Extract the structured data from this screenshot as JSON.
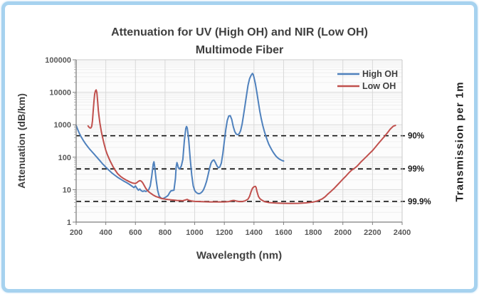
{
  "title": {
    "line1": "Attenuation for UV (High OH) and NIR (Low OH)",
    "line2": "Multimode Fiber"
  },
  "frame": {
    "border_color": "#a6d2ef",
    "background": "#ffffff"
  },
  "legend": {
    "position": "top-right-inside",
    "items": [
      {
        "label": "High OH",
        "color": "#4f81bd"
      },
      {
        "label": "Low OH",
        "color": "#c0504d"
      }
    ]
  },
  "chart_data": {
    "type": "line",
    "title": "Attenuation for UV (High OH) and NIR (Low OH) Multimode Fiber",
    "xlabel": "Wavelength (nm)",
    "ylabel": "Attenuation (dB/km)",
    "y2label": "Transmission per 1m",
    "x_range": [
      200,
      2400
    ],
    "x_ticks": [
      200,
      400,
      600,
      800,
      1000,
      1200,
      1400,
      1600,
      1800,
      2000,
      2200,
      2400
    ],
    "y_scale": "log",
    "y_range": [
      1,
      100000
    ],
    "y_ticks": [
      1,
      10,
      100,
      1000,
      10000,
      100000
    ],
    "y_tick_labels": [
      "1",
      "10",
      "100",
      "1000",
      "10000",
      "100000"
    ],
    "grid": "major-vertical, major-and-minor-horizontal",
    "reference_lines": [
      {
        "label": "90%",
        "attenuation_db_per_km": 457.6,
        "style": "black-dashed"
      },
      {
        "label": "99%",
        "attenuation_db_per_km": 43.6,
        "style": "black-dashed"
      },
      {
        "label": "99.9%",
        "attenuation_db_per_km": 4.34,
        "style": "black-dashed"
      }
    ],
    "series": [
      {
        "name": "High OH",
        "color": "#4f81bd",
        "points": [
          [
            200,
            950
          ],
          [
            210,
            720
          ],
          [
            220,
            560
          ],
          [
            230,
            455
          ],
          [
            240,
            380
          ],
          [
            250,
            320
          ],
          [
            260,
            272
          ],
          [
            270,
            235
          ],
          [
            280,
            205
          ],
          [
            290,
            180
          ],
          [
            300,
            160
          ],
          [
            310,
            142
          ],
          [
            320,
            126
          ],
          [
            330,
            112
          ],
          [
            340,
            100
          ],
          [
            350,
            88
          ],
          [
            360,
            78
          ],
          [
            370,
            69
          ],
          [
            380,
            61
          ],
          [
            390,
            55
          ],
          [
            400,
            49
          ],
          [
            420,
            40
          ],
          [
            440,
            33
          ],
          [
            460,
            28
          ],
          [
            480,
            24
          ],
          [
            500,
            21
          ],
          [
            520,
            18.5
          ],
          [
            540,
            16.5
          ],
          [
            560,
            14.5
          ],
          [
            580,
            12.5
          ],
          [
            590,
            11.5
          ],
          [
            600,
            13
          ],
          [
            610,
            11
          ],
          [
            620,
            9.6
          ],
          [
            630,
            10.4
          ],
          [
            640,
            9.2
          ],
          [
            650,
            8.8
          ],
          [
            660,
            9.2
          ],
          [
            670,
            8.8
          ],
          [
            680,
            9.2
          ],
          [
            690,
            10
          ],
          [
            700,
            13
          ],
          [
            710,
            26
          ],
          [
            720,
            62
          ],
          [
            725,
            72
          ],
          [
            730,
            52
          ],
          [
            740,
            20
          ],
          [
            750,
            9.5
          ],
          [
            760,
            6.4
          ],
          [
            770,
            5.6
          ],
          [
            780,
            5.3
          ],
          [
            790,
            5.4
          ],
          [
            800,
            5.7
          ],
          [
            810,
            6.1
          ],
          [
            820,
            6.6
          ],
          [
            830,
            8
          ],
          [
            840,
            9.2
          ],
          [
            850,
            9.4
          ],
          [
            860,
            9.6
          ],
          [
            870,
            22
          ],
          [
            875,
            50
          ],
          [
            880,
            68
          ],
          [
            885,
            58
          ],
          [
            890,
            47
          ],
          [
            900,
            44
          ],
          [
            910,
            54
          ],
          [
            920,
            85
          ],
          [
            930,
            320
          ],
          [
            940,
            780
          ],
          [
            945,
            880
          ],
          [
            950,
            790
          ],
          [
            955,
            520
          ],
          [
            960,
            330
          ],
          [
            970,
            86
          ],
          [
            980,
            28
          ],
          [
            990,
            13
          ],
          [
            1000,
            9.4
          ],
          [
            1010,
            8.2
          ],
          [
            1020,
            7.7
          ],
          [
            1030,
            7.5
          ],
          [
            1040,
            7.8
          ],
          [
            1050,
            8.6
          ],
          [
            1060,
            10
          ],
          [
            1070,
            13
          ],
          [
            1080,
            18
          ],
          [
            1090,
            28
          ],
          [
            1100,
            45
          ],
          [
            1110,
            65
          ],
          [
            1120,
            78
          ],
          [
            1130,
            82
          ],
          [
            1140,
            68
          ],
          [
            1150,
            54
          ],
          [
            1160,
            47
          ],
          [
            1170,
            50
          ],
          [
            1180,
            66
          ],
          [
            1190,
            130
          ],
          [
            1200,
            310
          ],
          [
            1210,
            720
          ],
          [
            1220,
            1350
          ],
          [
            1230,
            1850
          ],
          [
            1240,
            1900
          ],
          [
            1250,
            1450
          ],
          [
            1260,
            880
          ],
          [
            1270,
            620
          ],
          [
            1280,
            520
          ],
          [
            1290,
            490
          ],
          [
            1300,
            525
          ],
          [
            1310,
            660
          ],
          [
            1320,
            1050
          ],
          [
            1330,
            2000
          ],
          [
            1340,
            4000
          ],
          [
            1350,
            8200
          ],
          [
            1360,
            16500
          ],
          [
            1370,
            26000
          ],
          [
            1380,
            33000
          ],
          [
            1390,
            38000
          ],
          [
            1395,
            35000
          ],
          [
            1400,
            29000
          ],
          [
            1410,
            18000
          ],
          [
            1420,
            9500
          ],
          [
            1430,
            4800
          ],
          [
            1440,
            2550
          ],
          [
            1450,
            1480
          ],
          [
            1460,
            930
          ],
          [
            1470,
            630
          ],
          [
            1480,
            445
          ],
          [
            1490,
            330
          ],
          [
            1500,
            252
          ],
          [
            1510,
            205
          ],
          [
            1520,
            168
          ],
          [
            1530,
            141
          ],
          [
            1540,
            121
          ],
          [
            1550,
            106
          ],
          [
            1560,
            96
          ],
          [
            1570,
            88
          ],
          [
            1580,
            83
          ],
          [
            1590,
            79
          ],
          [
            1600,
            76
          ]
        ]
      },
      {
        "name": "Low OH",
        "color": "#c0504d",
        "points": [
          [
            280,
            920
          ],
          [
            285,
            860
          ],
          [
            290,
            810
          ],
          [
            295,
            790
          ],
          [
            300,
            800
          ],
          [
            305,
            900
          ],
          [
            310,
            1300
          ],
          [
            315,
            2600
          ],
          [
            320,
            5200
          ],
          [
            325,
            8800
          ],
          [
            330,
            11000
          ],
          [
            335,
            11800
          ],
          [
            340,
            9800
          ],
          [
            345,
            5200
          ],
          [
            350,
            2700
          ],
          [
            355,
            1700
          ],
          [
            360,
            1150
          ],
          [
            370,
            610
          ],
          [
            380,
            375
          ],
          [
            390,
            240
          ],
          [
            400,
            165
          ],
          [
            410,
            122
          ],
          [
            420,
            95
          ],
          [
            430,
            75
          ],
          [
            440,
            61
          ],
          [
            450,
            50
          ],
          [
            460,
            42
          ],
          [
            470,
            36
          ],
          [
            480,
            31
          ],
          [
            490,
            28
          ],
          [
            500,
            25.5
          ],
          [
            520,
            22
          ],
          [
            540,
            19.5
          ],
          [
            560,
            17.5
          ],
          [
            580,
            16
          ],
          [
            600,
            15.5
          ],
          [
            610,
            16.5
          ],
          [
            620,
            18
          ],
          [
            630,
            19
          ],
          [
            640,
            18.2
          ],
          [
            650,
            16
          ],
          [
            660,
            13.2
          ],
          [
            670,
            11
          ],
          [
            680,
            9.6
          ],
          [
            690,
            8.6
          ],
          [
            700,
            7.9
          ],
          [
            720,
            6.8
          ],
          [
            740,
            6.1
          ],
          [
            760,
            5.7
          ],
          [
            780,
            5.3
          ],
          [
            800,
            5.1
          ],
          [
            820,
            4.95
          ],
          [
            840,
            4.85
          ],
          [
            860,
            4.75
          ],
          [
            880,
            4.65
          ],
          [
            900,
            4.6
          ],
          [
            920,
            4.55
          ],
          [
            940,
            4.85
          ],
          [
            950,
            5.0
          ],
          [
            960,
            4.7
          ],
          [
            980,
            4.45
          ],
          [
            1000,
            4.35
          ],
          [
            1050,
            4.25
          ],
          [
            1100,
            4.2
          ],
          [
            1150,
            4.2
          ],
          [
            1200,
            4.2
          ],
          [
            1230,
            4.3
          ],
          [
            1250,
            4.55
          ],
          [
            1260,
            4.65
          ],
          [
            1270,
            4.6
          ],
          [
            1280,
            4.45
          ],
          [
            1300,
            4.3
          ],
          [
            1320,
            4.3
          ],
          [
            1340,
            4.5
          ],
          [
            1360,
            5.1
          ],
          [
            1370,
            6.2
          ],
          [
            1380,
            8.6
          ],
          [
            1390,
            11
          ],
          [
            1400,
            12.3
          ],
          [
            1410,
            12.6
          ],
          [
            1415,
            11.5
          ],
          [
            1420,
            8.8
          ],
          [
            1430,
            6.2
          ],
          [
            1440,
            5.3
          ],
          [
            1450,
            4.85
          ],
          [
            1470,
            4.3
          ],
          [
            1500,
            4.0
          ],
          [
            1550,
            3.85
          ],
          [
            1600,
            3.8
          ],
          [
            1650,
            3.78
          ],
          [
            1700,
            3.8
          ],
          [
            1750,
            3.9
          ],
          [
            1800,
            4.15
          ],
          [
            1830,
            4.5
          ],
          [
            1860,
            5.2
          ],
          [
            1880,
            6.0
          ],
          [
            1900,
            7.4
          ],
          [
            1920,
            8.9
          ],
          [
            1940,
            10.8
          ],
          [
            1960,
            13.5
          ],
          [
            1980,
            16.8
          ],
          [
            2000,
            21
          ],
          [
            2020,
            26
          ],
          [
            2040,
            33
          ],
          [
            2060,
            40
          ],
          [
            2080,
            46
          ],
          [
            2100,
            55
          ],
          [
            2120,
            70
          ],
          [
            2140,
            86
          ],
          [
            2160,
            105
          ],
          [
            2180,
            130
          ],
          [
            2200,
            160
          ],
          [
            2220,
            205
          ],
          [
            2240,
            265
          ],
          [
            2260,
            340
          ],
          [
            2280,
            430
          ],
          [
            2300,
            560
          ],
          [
            2320,
            730
          ],
          [
            2340,
            900
          ],
          [
            2355,
            950
          ]
        ]
      }
    ]
  }
}
